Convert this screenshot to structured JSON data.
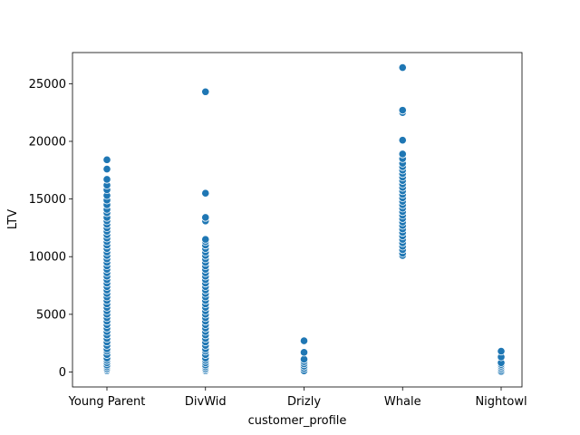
{
  "chart_data": {
    "type": "scatter",
    "xlabel": "customer_profile",
    "ylabel": "LTV",
    "ylim": [
      -1300,
      27700
    ],
    "yticks": [
      0,
      5000,
      10000,
      15000,
      20000,
      25000
    ],
    "ytick_labels": [
      "0",
      "5000",
      "10000",
      "15000",
      "20000",
      "25000"
    ],
    "categories": [
      "Young Parent",
      "DivWid",
      "Drizly",
      "Whale",
      "Nightowl"
    ],
    "grid": false,
    "legend": "none",
    "marker_color": "#1f77b4",
    "series": [
      {
        "values": {
          "Young Parent": [
            100,
            200,
            300,
            450,
            600,
            800,
            1000,
            1200,
            1500,
            1800,
            2000,
            2300,
            2600,
            2900,
            3200,
            3500,
            3800,
            4100,
            4400,
            4700,
            5000,
            5300,
            5600,
            5900,
            6200,
            6500,
            6800,
            7100,
            7400,
            7700,
            8000,
            8300,
            8600,
            8900,
            9200,
            9500,
            9800,
            10100,
            10400,
            10700,
            11000,
            11300,
            11600,
            11900,
            12200,
            12500,
            12800,
            13100,
            13400,
            13800,
            14100,
            14500,
            14900,
            15300,
            15800,
            16200,
            16700,
            17600,
            18400
          ],
          "DivWid": [
            100,
            200,
            300,
            450,
            600,
            800,
            1000,
            1200,
            1500,
            1800,
            2000,
            2300,
            2600,
            2900,
            3200,
            3500,
            3800,
            4100,
            4400,
            4700,
            5000,
            5300,
            5600,
            5900,
            6200,
            6500,
            6800,
            7100,
            7400,
            7700,
            8000,
            8300,
            8600,
            8900,
            9200,
            9500,
            9800,
            10100,
            10400,
            10700,
            11000,
            11300,
            11500,
            13100,
            13400,
            15500,
            24300
          ],
          "Drizly": [
            100,
            300,
            500,
            700,
            900,
            1100,
            1700,
            2700
          ],
          "Whale": [
            10100,
            10300,
            10600,
            10900,
            11200,
            11500,
            11800,
            12100,
            12400,
            12700,
            13000,
            13300,
            13600,
            13900,
            14200,
            14500,
            14800,
            15100,
            15400,
            15700,
            16000,
            16300,
            16600,
            16900,
            17200,
            17500,
            17800,
            18100,
            18500,
            18900,
            20100,
            22500,
            22700,
            26400
          ],
          "Nightowl": [
            50,
            200,
            350,
            500,
            650,
            800,
            1300,
            1800
          ]
        }
      }
    ]
  }
}
